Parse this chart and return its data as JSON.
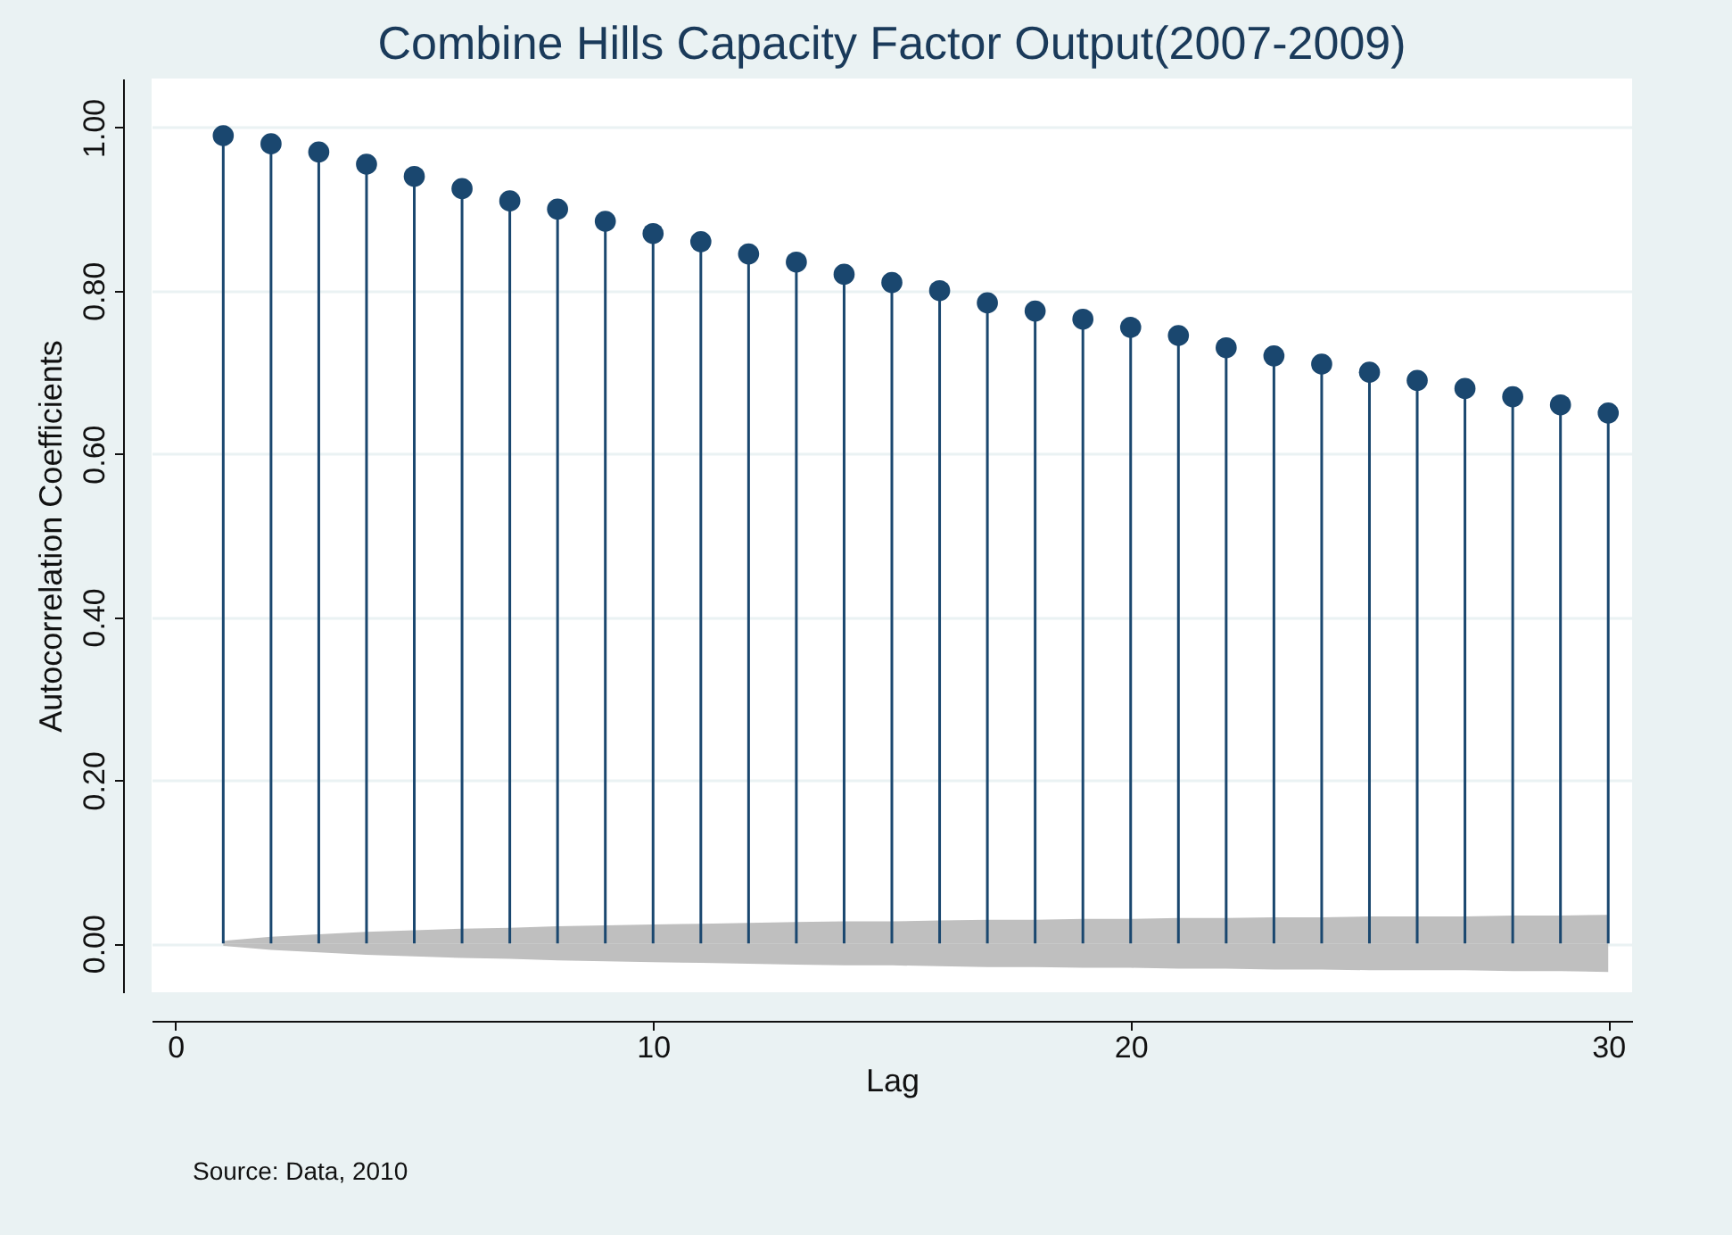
{
  "chart_data": {
    "type": "lollipop",
    "title": "Combine Hills Capacity Factor Output(2007-2009)",
    "xlabel": "Lag",
    "ylabel": "Autocorrelation Coefficients",
    "annotations": [
      "Source:  Data, 2010"
    ],
    "xlim": [
      -0.5,
      30.5
    ],
    "ylim": [
      -0.06,
      1.06
    ],
    "xticks": [
      0,
      10,
      20,
      30
    ],
    "yticks": [
      {
        "value": 0,
        "label": "0.00"
      },
      {
        "value": 0.2,
        "label": "0.20"
      },
      {
        "value": 0.4,
        "label": "0.40"
      },
      {
        "value": 0.6,
        "label": "0.60"
      },
      {
        "value": 0.8,
        "label": "0.80"
      },
      {
        "value": 1,
        "label": "1.00"
      }
    ],
    "grid": "y",
    "marker": "circle",
    "series": [
      {
        "type": "area",
        "marker": "none",
        "color": "#bfbfbf",
        "x": [
          1,
          2,
          3,
          4,
          5,
          6,
          7,
          8,
          9,
          10,
          11,
          12,
          13,
          14,
          15,
          16,
          17,
          18,
          19,
          20,
          21,
          22,
          23,
          24,
          25,
          26,
          27,
          28,
          29,
          30
        ],
        "values": [
          0.003,
          0.008,
          0.011,
          0.014,
          0.016,
          0.018,
          0.019,
          0.021,
          0.022,
          0.023,
          0.024,
          0.025,
          0.026,
          0.027,
          0.027,
          0.028,
          0.029,
          0.029,
          0.03,
          0.03,
          0.031,
          0.031,
          0.032,
          0.032,
          0.033,
          0.033,
          0.033,
          0.034,
          0.034,
          0.035
        ]
      },
      {
        "type": "area",
        "marker": "none",
        "color": "#bfbfbf",
        "x": [
          1,
          2,
          3,
          4,
          5,
          6,
          7,
          8,
          9,
          10,
          11,
          12,
          13,
          14,
          15,
          16,
          17,
          18,
          19,
          20,
          21,
          22,
          23,
          24,
          25,
          26,
          27,
          28,
          29,
          30
        ],
        "values": [
          -0.003,
          -0.008,
          -0.011,
          -0.014,
          -0.016,
          -0.018,
          -0.019,
          -0.021,
          -0.022,
          -0.023,
          -0.024,
          -0.025,
          -0.026,
          -0.027,
          -0.027,
          -0.028,
          -0.029,
          -0.029,
          -0.03,
          -0.03,
          -0.031,
          -0.031,
          -0.032,
          -0.032,
          -0.033,
          -0.033,
          -0.033,
          -0.034,
          -0.034,
          -0.035
        ]
      },
      {
        "color": "#1a476f",
        "x": [
          1,
          2,
          3,
          4,
          5,
          6,
          7,
          8,
          9,
          10,
          11,
          12,
          13,
          14,
          15,
          16,
          17,
          18,
          19,
          20,
          21,
          22,
          23,
          24,
          25,
          26,
          27,
          28,
          29,
          30
        ],
        "values": [
          0.99,
          0.98,
          0.97,
          0.955,
          0.94,
          0.925,
          0.91,
          0.9,
          0.885,
          0.87,
          0.86,
          0.845,
          0.835,
          0.82,
          0.81,
          0.8,
          0.785,
          0.775,
          0.765,
          0.755,
          0.745,
          0.73,
          0.72,
          0.71,
          0.7,
          0.69,
          0.68,
          0.67,
          0.66,
          0.65
        ]
      }
    ]
  }
}
